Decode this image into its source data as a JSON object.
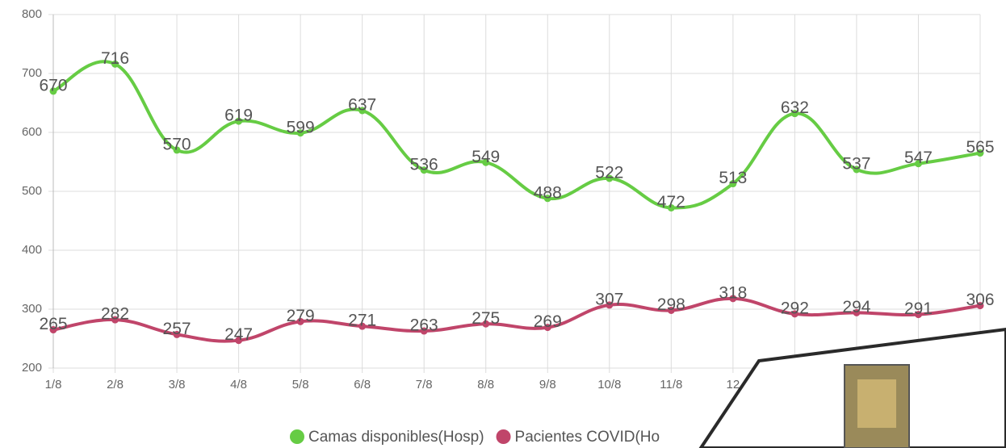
{
  "chart_data": {
    "type": "line",
    "categories": [
      "1/8",
      "2/8",
      "3/8",
      "4/8",
      "5/8",
      "6/8",
      "7/8",
      "8/8",
      "9/8",
      "10/8",
      "11/8",
      "12",
      null,
      null,
      null,
      null
    ],
    "series": [
      {
        "name": "Camas disponibles(Hosp)",
        "color": "#66cc44",
        "values": [
          670,
          716,
          570,
          619,
          599,
          637,
          536,
          549,
          488,
          522,
          472,
          513,
          632,
          537,
          547,
          565
        ]
      },
      {
        "name": "Pacientes COVID(Ho",
        "color": "#c0456a",
        "values": [
          265,
          282,
          257,
          247,
          279,
          271,
          263,
          275,
          269,
          307,
          298,
          318,
          292,
          294,
          291,
          306
        ]
      }
    ],
    "ylim": [
      200,
      800
    ],
    "yticks": [
      200,
      300,
      400,
      500,
      600,
      700,
      800
    ],
    "grid": true
  }
}
